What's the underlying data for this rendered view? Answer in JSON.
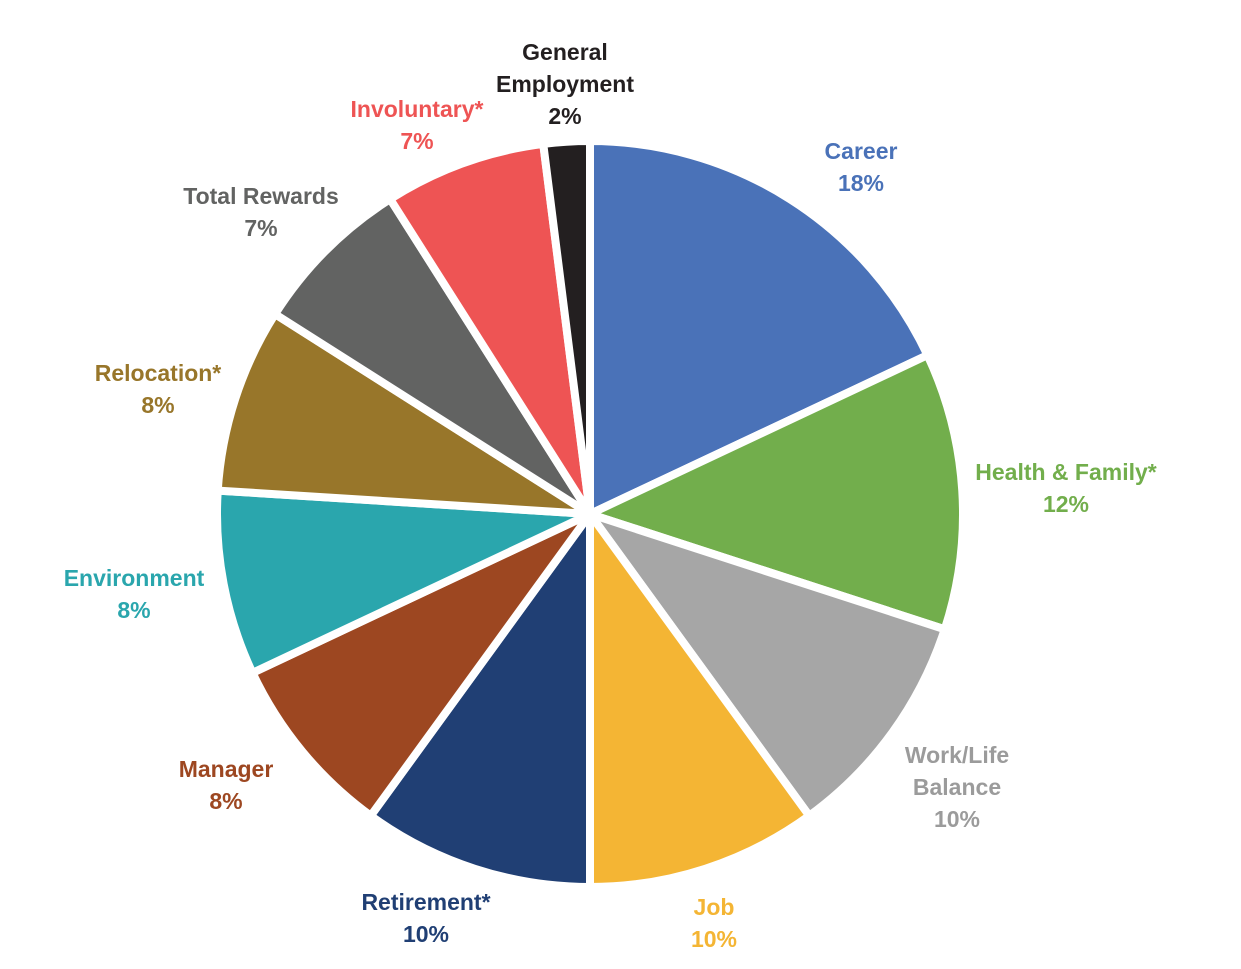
{
  "chart_data": {
    "type": "pie",
    "title": "",
    "start_angle_deg": 0,
    "direction": "clockwise",
    "slices": [
      {
        "label": "Career",
        "value": 18,
        "value_label": "18%",
        "color": "#4A72B8"
      },
      {
        "label": "Health & Family*",
        "value": 12,
        "value_label": "12%",
        "color": "#72AE4C"
      },
      {
        "label": "Work/Life Balance",
        "value": 10,
        "value_label": "10%",
        "color": "#A6A6A6"
      },
      {
        "label": "Job",
        "value": 10,
        "value_label": "10%",
        "color": "#F4B534"
      },
      {
        "label": "Retirement*",
        "value": 10,
        "value_label": "10%",
        "color": "#203F74"
      },
      {
        "label": "Manager",
        "value": 8,
        "value_label": "8%",
        "color": "#9D4721"
      },
      {
        "label": "Environment",
        "value": 8,
        "value_label": "8%",
        "color": "#2AA6AD"
      },
      {
        "label": "Relocation*",
        "value": 8,
        "value_label": "8%",
        "color": "#98762A"
      },
      {
        "label": "Total Rewards",
        "value": 7,
        "value_label": "7%",
        "color": "#626362"
      },
      {
        "label": "Involuntary*",
        "value": 7,
        "value_label": "7%",
        "color": "#EE5454"
      },
      {
        "label": "General Employment",
        "value": 2,
        "value_label": "2%",
        "color": "#231F20"
      }
    ]
  }
}
